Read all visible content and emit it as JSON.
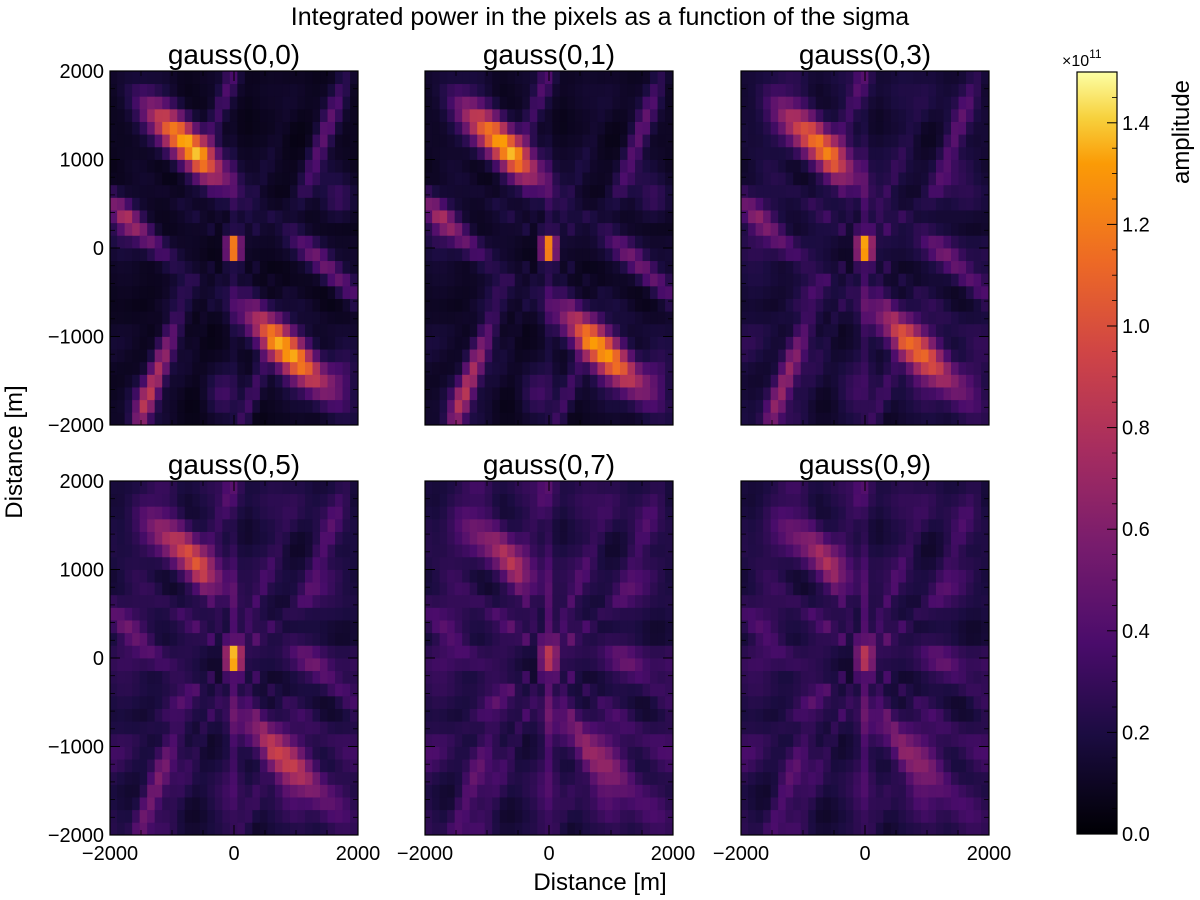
{
  "chart_data": {
    "type": "heatmap",
    "title": "Integrated power in the pixels as a function of the sigma",
    "xlabel": "Distance [m]",
    "ylabel": "Distance [m]",
    "xlim": [
      -2000,
      2000
    ],
    "ylim": [
      -2000,
      2000
    ],
    "x_ticks": [
      "−2000",
      "0",
      "2000"
    ],
    "y_ticks": [
      "2000",
      "1000",
      "0",
      "−1000",
      "−2000"
    ],
    "grid": false,
    "colormap": "inferno",
    "colorbar": {
      "label": "amplitude",
      "multiplier": "×10",
      "exponent": "11",
      "range": [
        0.0,
        1.5
      ],
      "ticks": [
        "0.0",
        "0.2",
        "0.4",
        "0.6",
        "0.8",
        "1.0",
        "1.2",
        "1.4"
      ]
    },
    "panels": [
      {
        "title": "gauss(0,0)",
        "center_peak": 1.5,
        "lobe_peak": 1.25,
        "background": 0.1
      },
      {
        "title": "gauss(0,1)",
        "center_peak": 1.5,
        "lobe_peak": 1.2,
        "background": 0.12
      },
      {
        "title": "gauss(0,3)",
        "center_peak": 1.5,
        "lobe_peak": 0.95,
        "background": 0.18
      },
      {
        "title": "gauss(0,5)",
        "center_peak": 1.45,
        "lobe_peak": 0.7,
        "background": 0.22
      },
      {
        "title": "gauss(0,7)",
        "center_peak": 0.6,
        "lobe_peak": 0.45,
        "background": 0.25
      },
      {
        "title": "gauss(0,9)",
        "center_peak": 0.6,
        "lobe_peak": 0.42,
        "background": 0.24
      }
    ]
  }
}
